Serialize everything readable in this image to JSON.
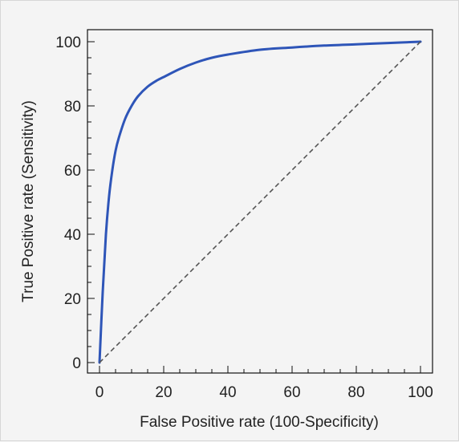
{
  "chart_data": {
    "type": "line",
    "title": "",
    "xlabel": "False Positive rate (100-Specificity)",
    "ylabel": "True Positive rate (Sensitivity)",
    "xlim": [
      0,
      100
    ],
    "ylim": [
      0,
      100
    ],
    "x_ticks": [
      "0",
      "20",
      "40",
      "60",
      "80",
      "100"
    ],
    "y_ticks": [
      "0",
      "20",
      "40",
      "60",
      "80",
      "100"
    ],
    "grid": false,
    "legend": "none",
    "series": [
      {
        "style": "solid",
        "color": "#2e55b8",
        "x": [
          0,
          1,
          2,
          3,
          4,
          5,
          6,
          8,
          10,
          12,
          15,
          18,
          20,
          25,
          30,
          35,
          40,
          50,
          60,
          70,
          80,
          90,
          100
        ],
        "y": [
          0,
          22,
          40,
          52,
          60,
          66,
          70,
          76,
          80,
          83,
          86,
          88,
          89,
          91.5,
          93.5,
          95,
          96,
          97.5,
          98.2,
          98.8,
          99.2,
          99.6,
          100
        ]
      },
      {
        "style": "dashed",
        "color": "#555555",
        "x": [
          0,
          100
        ],
        "y": [
          0,
          100
        ]
      }
    ]
  }
}
